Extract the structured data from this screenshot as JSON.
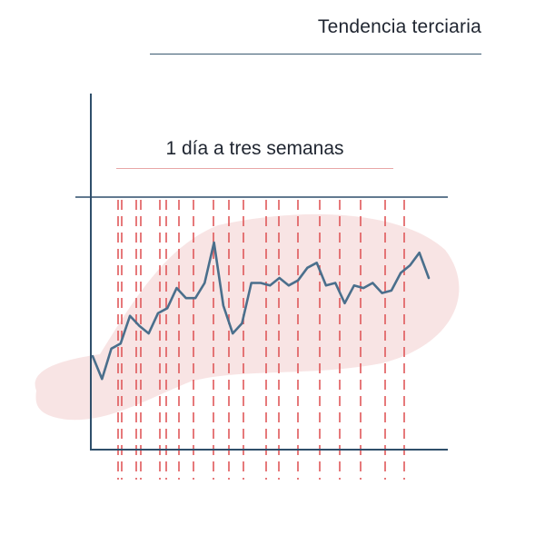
{
  "title": "Tendencia terciaria",
  "subtitle": "1 día a tres semanas",
  "colors": {
    "axis": "#2f4f6b",
    "trend_line": "#4a6f8c",
    "dashes": "#e0585a",
    "blob": "#f8e4e4",
    "title_rule": "#3a5a70",
    "subtitle_rule": "#e8a6a6",
    "text": "#1f2530"
  },
  "chart_data": {
    "type": "line",
    "title": "",
    "xlabel": "",
    "ylabel": "",
    "x": [
      0,
      1,
      2,
      3,
      4,
      5,
      6,
      7,
      8,
      9,
      10,
      11,
      12,
      13,
      14,
      15,
      16,
      17,
      18,
      19,
      20,
      21,
      22,
      23,
      24,
      25,
      26,
      27,
      28,
      29,
      30,
      31,
      32,
      33,
      34,
      35,
      36
    ],
    "values": [
      37,
      28,
      40,
      42,
      53,
      49,
      46,
      54,
      56,
      64,
      60,
      60,
      66,
      82,
      57,
      46,
      50,
      66,
      66,
      65,
      68,
      65,
      67,
      72,
      74,
      65,
      66,
      58,
      65,
      64,
      66,
      62,
      63,
      70,
      73,
      78,
      68
    ],
    "ylim": [
      0,
      100
    ],
    "grid": false,
    "dashed_markers": 20
  }
}
